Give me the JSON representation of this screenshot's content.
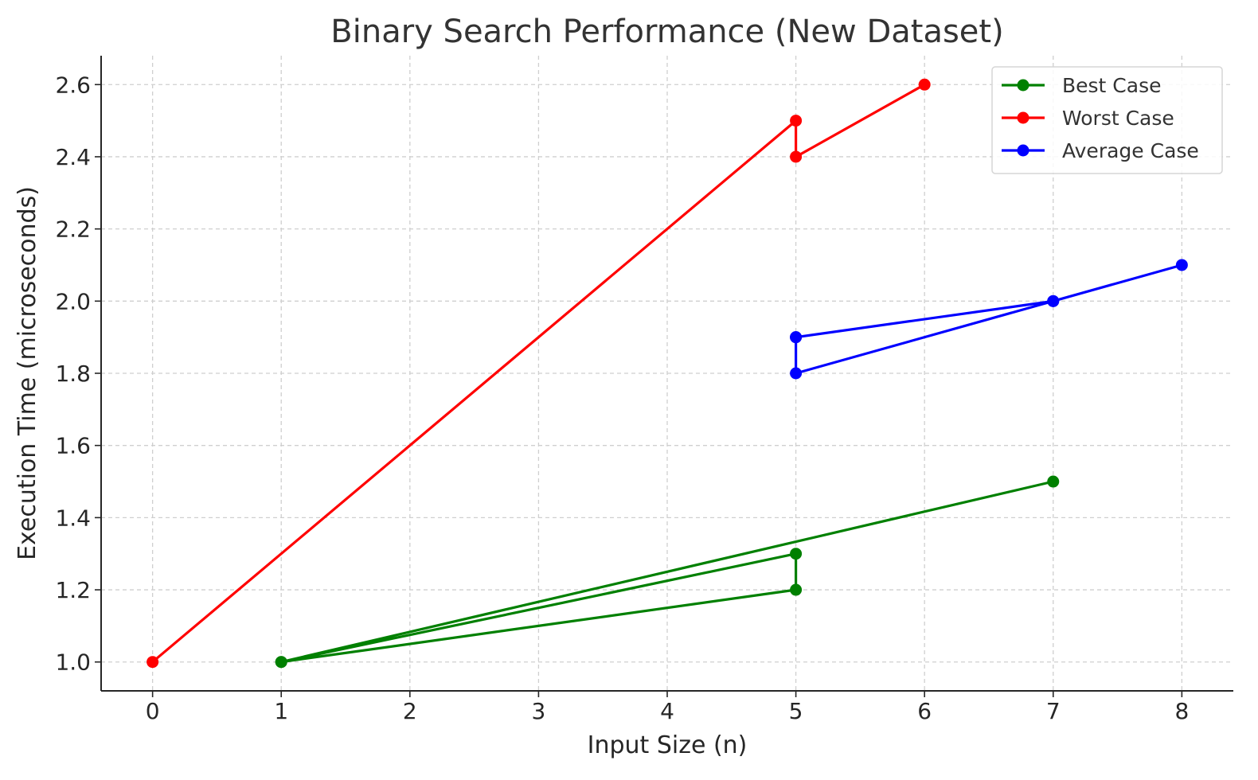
{
  "chart_data": {
    "type": "line",
    "title": "Binary Search Performance (New Dataset)",
    "xlabel": "Input Size (n)",
    "ylabel": "Execution Time (microseconds)",
    "xlim": [
      -0.4,
      8.4
    ],
    "ylim": [
      0.92,
      2.68
    ],
    "xticks": [
      0,
      1,
      2,
      3,
      4,
      5,
      6,
      7,
      8
    ],
    "xtick_labels": [
      "0",
      "1",
      "2",
      "3",
      "4",
      "5",
      "6",
      "7",
      "8"
    ],
    "yticks": [
      1.0,
      1.2,
      1.4,
      1.6,
      1.8,
      2.0,
      2.2,
      2.4,
      2.6
    ],
    "ytick_labels": [
      "1.0",
      "1.2",
      "1.4",
      "1.6",
      "1.8",
      "2.0",
      "2.2",
      "2.4",
      "2.6"
    ],
    "grid": true,
    "legend_position": "top-right",
    "series": [
      {
        "name": "Best Case",
        "color": "#008000",
        "x": [
          1,
          5,
          5,
          1,
          7
        ],
        "y": [
          1.0,
          1.2,
          1.3,
          1.0,
          1.5
        ]
      },
      {
        "name": "Worst Case",
        "color": "#ff0000",
        "x": [
          0,
          5,
          5,
          6
        ],
        "y": [
          1.0,
          2.5,
          2.4,
          2.6
        ]
      },
      {
        "name": "Average Case",
        "color": "#0000ff",
        "x": [
          5,
          5,
          7,
          8,
          7,
          5
        ],
        "y": [
          1.9,
          1.8,
          2.0,
          2.1,
          2.0,
          1.9
        ]
      }
    ]
  }
}
